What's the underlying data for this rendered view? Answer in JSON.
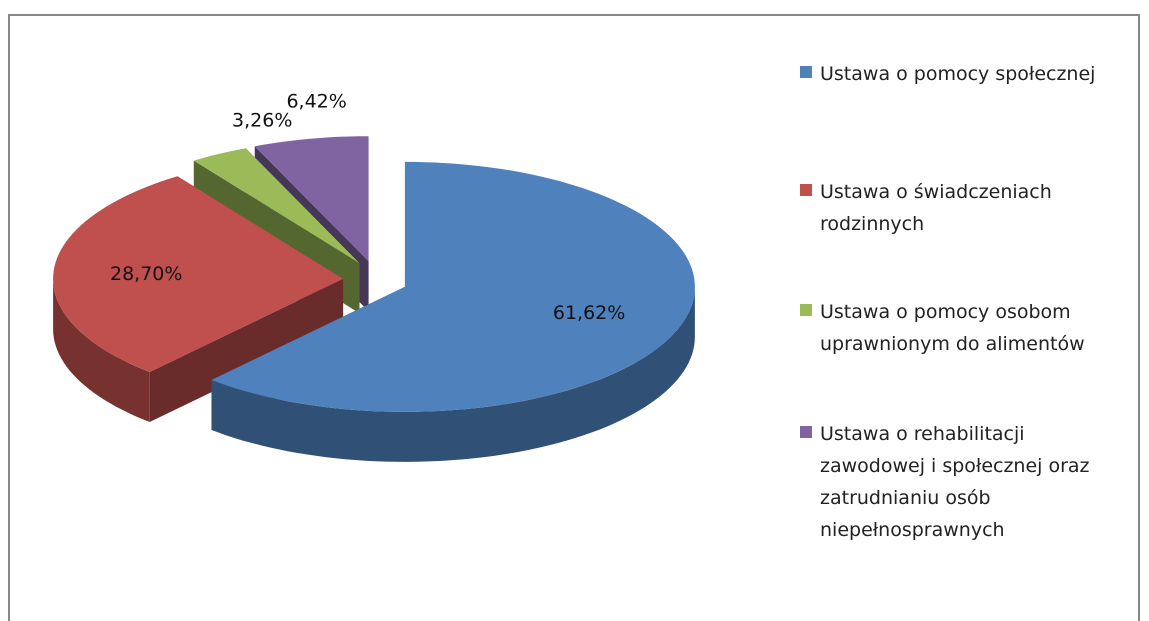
{
  "chart_data": {
    "type": "pie",
    "categories": [
      "Ustawa o pomocy społecznej",
      "Ustawa o świadczeniach rodzinnych",
      "Ustawa o pomocy osobom uprawnionym do alimentów",
      "Ustawa o rehabilitacji zawodowej i społecznej oraz zatrudnianiu osób niepełnosprawnych"
    ],
    "values": [
      61.62,
      28.7,
      3.26,
      6.42
    ],
    "value_labels": [
      "61,62%",
      "28,70%",
      "3,26%",
      "6,42%"
    ],
    "colors": [
      "#4f81bd",
      "#c0504d",
      "#9bbb59",
      "#8064a2"
    ],
    "legend": "right"
  }
}
